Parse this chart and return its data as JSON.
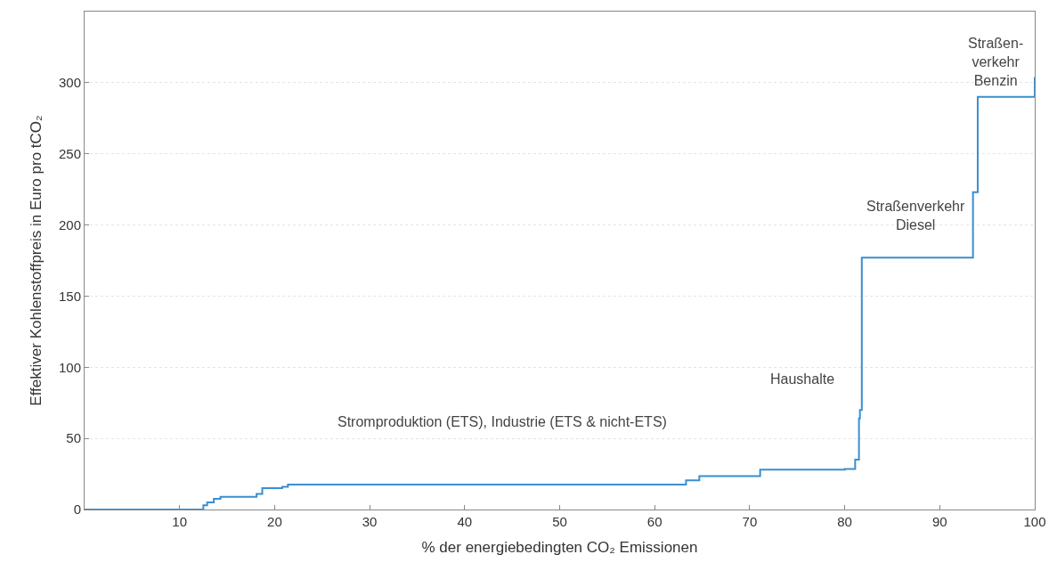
{
  "chart_data": {
    "type": "step",
    "xlabel": "% der energiebedingten CO₂ Emissionen",
    "ylabel": "Effektiver Kohlenstoffpreis in Euro pro tCO₂",
    "x": [
      0,
      12.5,
      12.9,
      13.6,
      14.3,
      18.1,
      18.7,
      20.8,
      21.4,
      63.3,
      64.7,
      71.1,
      80,
      81.1,
      81.5,
      81.6,
      81.8,
      93.5,
      94,
      100
    ],
    "series": [
      {
        "color": "#3a8fd0",
        "values": [
          0,
          3,
          5,
          7.5,
          9,
          11,
          15,
          16,
          17.5,
          20.5,
          23.5,
          28,
          28.5,
          35,
          64,
          70,
          177,
          223,
          290,
          304
        ]
      }
    ],
    "xlim": [
      0,
      100
    ],
    "xticks": [
      10,
      20,
      30,
      40,
      50,
      60,
      70,
      80,
      90,
      100
    ],
    "ylim": [
      0,
      350
    ],
    "yticks": [
      0,
      50,
      100,
      150,
      200,
      250,
      300
    ],
    "grid": "y",
    "marker": "none",
    "line_style": "solid",
    "annotations": [
      "Stromproduktion (ETS), Industrie (ETS & nicht-ETS)",
      "Haushalte",
      "Straßenverkehr\nDiesel",
      "Straßen-\nverkehr\nBenzin"
    ]
  }
}
